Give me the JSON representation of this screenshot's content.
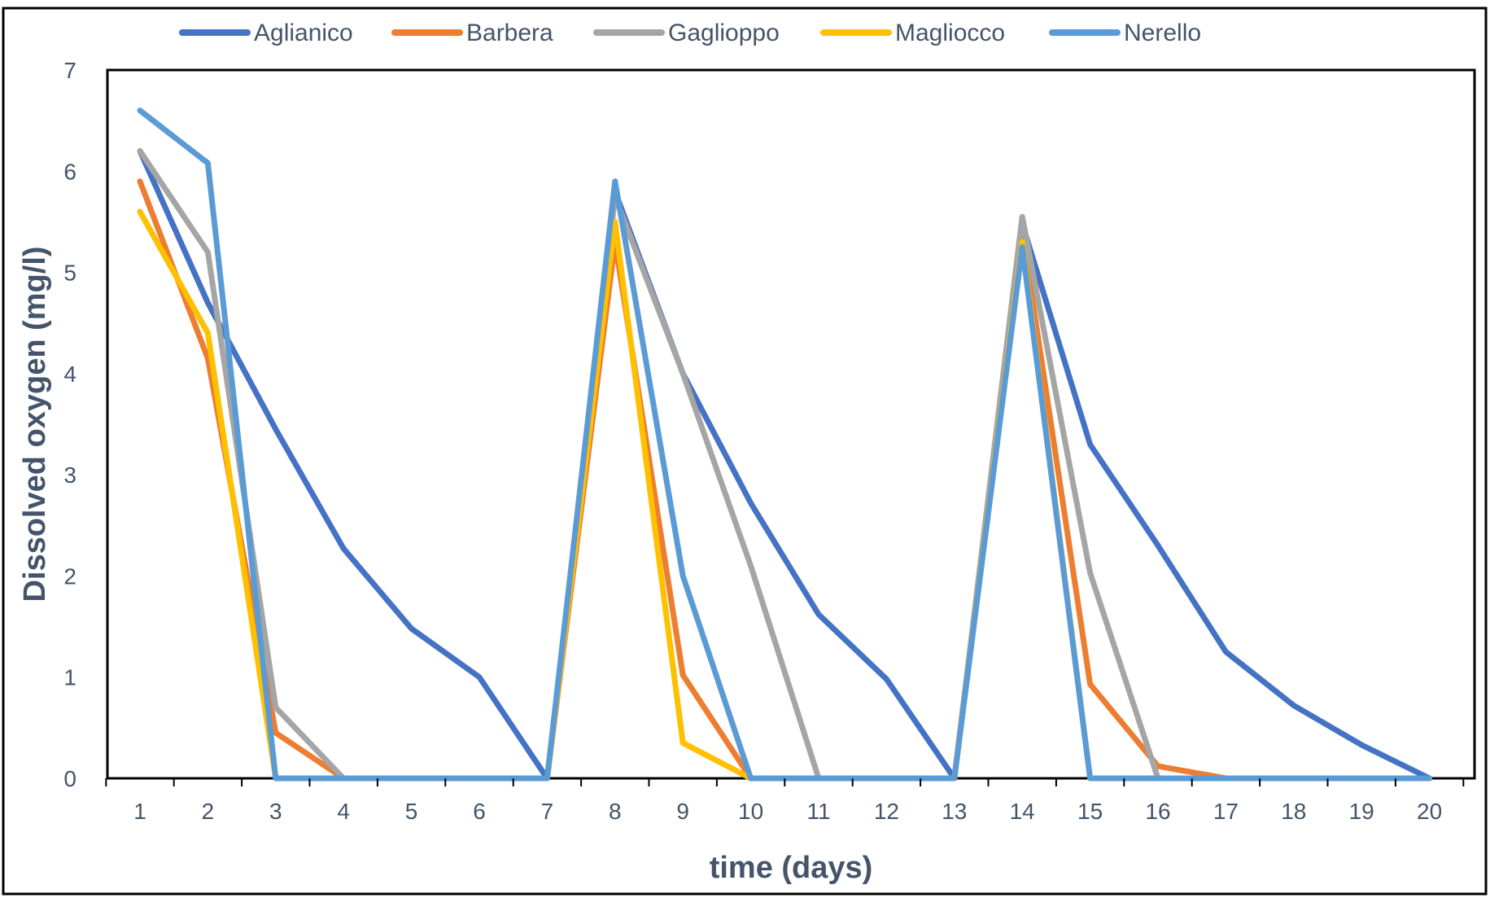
{
  "chart_data": {
    "type": "line",
    "title": "",
    "xlabel": "time (days)",
    "ylabel": "Dissolved oxygen (mg/l)",
    "x": [
      1,
      2,
      3,
      4,
      5,
      6,
      7,
      8,
      9,
      10,
      11,
      12,
      13,
      14,
      15,
      16,
      17,
      18,
      19,
      20
    ],
    "ylim": [
      0,
      7
    ],
    "yticks": [
      0,
      1,
      2,
      3,
      4,
      5,
      6,
      7
    ],
    "grid": false,
    "legend_position": "top",
    "series": [
      {
        "name": "Aglianico",
        "color": "#4472C4",
        "values": [
          6.2,
          4.7,
          3.45,
          2.27,
          1.48,
          1.0,
          0.0,
          5.8,
          4.0,
          2.72,
          1.62,
          0.98,
          0.0,
          5.48,
          3.3,
          2.3,
          1.25,
          0.72,
          0.33,
          0.0
        ]
      },
      {
        "name": "Barbera",
        "color": "#ED7D31",
        "values": [
          5.9,
          4.15,
          0.45,
          0.0,
          0.0,
          0.0,
          0.0,
          5.3,
          1.02,
          0.0,
          0.0,
          0.0,
          0.0,
          5.4,
          0.93,
          0.12,
          0.0,
          0.0,
          0.0,
          0.0
        ]
      },
      {
        "name": "Gaglioppo",
        "color": "#A5A5A5",
        "values": [
          6.2,
          5.2,
          0.7,
          0.0,
          0.0,
          0.0,
          0.0,
          5.75,
          4.0,
          2.1,
          0.0,
          0.0,
          0.0,
          5.55,
          2.03,
          0.0,
          0.0,
          0.0,
          0.0,
          0.0
        ]
      },
      {
        "name": "Magliocco",
        "color": "#FFC000",
        "values": [
          5.6,
          4.4,
          0.0,
          0.0,
          0.0,
          0.0,
          0.0,
          5.5,
          0.35,
          0.0,
          0.0,
          0.0,
          0.0,
          5.3,
          0.0,
          0.0,
          0.0,
          0.0,
          0.0,
          0.0
        ]
      },
      {
        "name": "Nerello",
        "color": "#5B9BD5",
        "values": [
          6.6,
          6.08,
          0.0,
          0.0,
          0.0,
          0.0,
          0.0,
          5.9,
          2.0,
          0.0,
          0.0,
          0.0,
          0.0,
          5.25,
          0.0,
          0.0,
          0.0,
          0.0,
          0.0,
          0.0
        ]
      }
    ]
  }
}
